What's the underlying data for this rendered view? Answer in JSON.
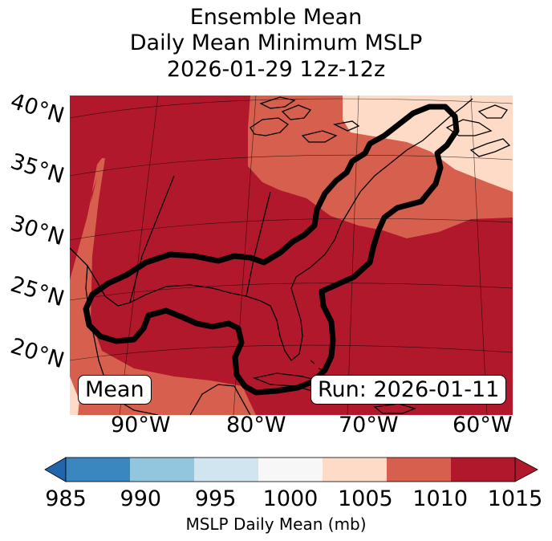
{
  "title": {
    "line1": "Ensemble Mean",
    "line2": "Daily Mean Minimum MSLP",
    "line3": "2026-01-29 12z-12z"
  },
  "map": {
    "lat_labels": [
      "40°N",
      "35°N",
      "30°N",
      "25°N",
      "20°N"
    ],
    "lon_labels": [
      "90°W",
      "80°W",
      "70°W",
      "60°W"
    ],
    "panel_label": "Mean",
    "run_label": "Run: 2026-01-11"
  },
  "colorbar": {
    "label": "MSLP Daily Mean (mb)",
    "ticks": [
      "985",
      "990",
      "995",
      "1000",
      "1005",
      "1010",
      "1015"
    ],
    "colors": [
      "#3a87c0",
      "#92c5de",
      "#d1e5f0",
      "#f7f7f7",
      "#fddbc7",
      "#d6604d",
      "#b2182b"
    ],
    "under_color": "#2166ac",
    "over_color": "#b2182b"
  }
}
